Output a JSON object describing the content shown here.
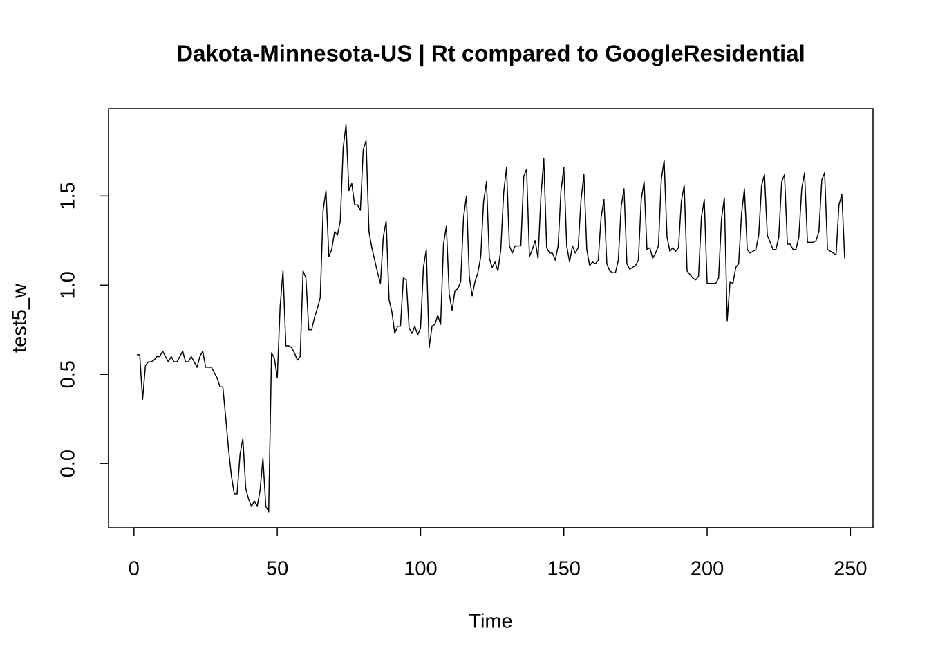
{
  "chart_data": {
    "type": "line",
    "title": "Dakota-Minnesota-US | Rt compared to GoogleResidential",
    "x_label": "Time",
    "y_label": "test5_w",
    "x": [
      1,
      2,
      3,
      4,
      5,
      6,
      7,
      8,
      9,
      10,
      11,
      12,
      13,
      14,
      15,
      16,
      17,
      18,
      19,
      20,
      21,
      22,
      23,
      24,
      25,
      26,
      27,
      28,
      29,
      30,
      31,
      32,
      33,
      34,
      35,
      36,
      37,
      38,
      39,
      40,
      41,
      42,
      43,
      44,
      45,
      46,
      47,
      48,
      49,
      50,
      51,
      52,
      53,
      54,
      55,
      56,
      57,
      58,
      59,
      60,
      61,
      62,
      63,
      64,
      65,
      66,
      67,
      68,
      69,
      70,
      71,
      72,
      73,
      74,
      75,
      76,
      77,
      78,
      79,
      80,
      81,
      82,
      83,
      84,
      85,
      86,
      87,
      88,
      89,
      90,
      91,
      92,
      93,
      94,
      95,
      96,
      97,
      98,
      99,
      100,
      101,
      102,
      103,
      104,
      105,
      106,
      107,
      108,
      109,
      110,
      111,
      112,
      113,
      114,
      115,
      116,
      117,
      118,
      119,
      120,
      121,
      122,
      123,
      124,
      125,
      126,
      127,
      128,
      129,
      130,
      131,
      132,
      133,
      134,
      135,
      136,
      137,
      138,
      139,
      140,
      141,
      142,
      143,
      144,
      145,
      146,
      147,
      148,
      149,
      150,
      151,
      152,
      153,
      154,
      155,
      156,
      157,
      158,
      159,
      160,
      161,
      162,
      163,
      164,
      165,
      166,
      167,
      168,
      169,
      170,
      171,
      172,
      173,
      174,
      175,
      176,
      177,
      178,
      179,
      180,
      181,
      182,
      183,
      184,
      185,
      186,
      187,
      188,
      189,
      190,
      191,
      192,
      193,
      194,
      195,
      196,
      197,
      198,
      199,
      200,
      201,
      202,
      203,
      204,
      205,
      206,
      207,
      208,
      209,
      210,
      211,
      212,
      213,
      214,
      215,
      216,
      217,
      218,
      219,
      220,
      221,
      222,
      223,
      224,
      225,
      226,
      227,
      228,
      229,
      230,
      231,
      232,
      233,
      234,
      235,
      236,
      237,
      238,
      239,
      240,
      241,
      242,
      243,
      244,
      245,
      246,
      247,
      248
    ],
    "values": [
      0.61,
      0.61,
      0.36,
      0.55,
      0.57,
      0.57,
      0.58,
      0.6,
      0.6,
      0.63,
      0.6,
      0.57,
      0.6,
      0.57,
      0.57,
      0.6,
      0.63,
      0.57,
      0.57,
      0.6,
      0.57,
      0.54,
      0.6,
      0.63,
      0.54,
      0.54,
      0.54,
      0.51,
      0.48,
      0.43,
      0.43,
      0.26,
      0.08,
      -0.07,
      -0.17,
      -0.17,
      0.05,
      0.14,
      -0.14,
      -0.2,
      -0.24,
      -0.21,
      -0.24,
      -0.15,
      0.03,
      -0.24,
      -0.27,
      0.62,
      0.59,
      0.48,
      0.88,
      1.08,
      0.66,
      0.66,
      0.65,
      0.62,
      0.58,
      0.6,
      1.08,
      1.04,
      0.75,
      0.75,
      0.82,
      0.87,
      0.93,
      1.42,
      1.53,
      1.16,
      1.2,
      1.3,
      1.28,
      1.36,
      1.77,
      1.9,
      1.53,
      1.57,
      1.45,
      1.45,
      1.42,
      1.76,
      1.81,
      1.3,
      1.21,
      1.14,
      1.07,
      1.01,
      1.27,
      1.36,
      0.92,
      0.85,
      0.73,
      0.77,
      0.77,
      1.04,
      1.03,
      0.76,
      0.73,
      0.77,
      0.72,
      0.76,
      1.1,
      1.2,
      0.65,
      0.77,
      0.78,
      0.83,
      0.78,
      1.23,
      1.33,
      0.95,
      0.86,
      0.97,
      0.98,
      1.02,
      1.38,
      1.5,
      1.05,
      0.94,
      1.02,
      1.07,
      1.16,
      1.47,
      1.58,
      1.15,
      1.1,
      1.13,
      1.08,
      1.2,
      1.52,
      1.66,
      1.22,
      1.18,
      1.22,
      1.22,
      1.22,
      1.61,
      1.65,
      1.16,
      1.2,
      1.25,
      1.15,
      1.5,
      1.71,
      1.21,
      1.18,
      1.18,
      1.14,
      1.22,
      1.53,
      1.66,
      1.22,
      1.13,
      1.22,
      1.18,
      1.21,
      1.48,
      1.62,
      1.2,
      1.11,
      1.13,
      1.12,
      1.14,
      1.38,
      1.48,
      1.12,
      1.08,
      1.07,
      1.07,
      1.14,
      1.44,
      1.54,
      1.12,
      1.09,
      1.1,
      1.11,
      1.14,
      1.48,
      1.58,
      1.2,
      1.21,
      1.15,
      1.18,
      1.22,
      1.59,
      1.7,
      1.27,
      1.19,
      1.21,
      1.19,
      1.21,
      1.47,
      1.56,
      1.08,
      1.06,
      1.04,
      1.03,
      1.05,
      1.38,
      1.48,
      1.01,
      1.01,
      1.01,
      1.01,
      1.04,
      1.37,
      1.49,
      0.8,
      1.02,
      1.01,
      1.1,
      1.12,
      1.4,
      1.54,
      1.2,
      1.18,
      1.19,
      1.2,
      1.28,
      1.56,
      1.62,
      1.28,
      1.24,
      1.2,
      1.2,
      1.27,
      1.58,
      1.62,
      1.23,
      1.23,
      1.2,
      1.2,
      1.27,
      1.54,
      1.63,
      1.24,
      1.24,
      1.24,
      1.25,
      1.3,
      1.59,
      1.63,
      1.2,
      1.19,
      1.18,
      1.17,
      1.45,
      1.51,
      1.15
    ],
    "color": "#000000",
    "xlim": [
      -8.88,
      257.88
    ],
    "ylim": [
      -0.36,
      1.99
    ],
    "xticks": [
      0,
      50,
      100,
      150,
      200,
      250
    ],
    "yticks": [
      {
        "value": 0,
        "label": "0.0"
      },
      0.5,
      {
        "value": 1,
        "label": "1.0"
      },
      1.5
    ],
    "grid": false
  }
}
